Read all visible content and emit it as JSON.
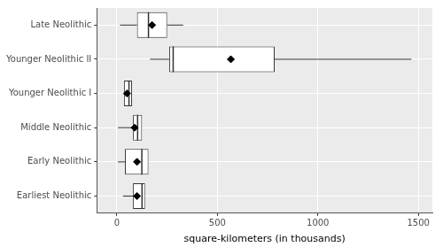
{
  "chart_data": {
    "type": "boxplot",
    "orientation": "horizontal",
    "categories": [
      "Late Neolithic",
      "Younger Neolithic II",
      "Younger Neolithic I",
      "Middle Neolithic",
      "Early Neolithic",
      "Earliest Neolithic"
    ],
    "min": [
      15,
      165,
      35,
      5,
      5,
      30
    ],
    "q1": [
      100,
      260,
      35,
      80,
      40,
      80
    ],
    "median": [
      157,
      280,
      60,
      103,
      124,
      125
    ],
    "q3": [
      250,
      785,
      75,
      125,
      157,
      140
    ],
    "max": [
      330,
      1465,
      75,
      125,
      157,
      140
    ],
    "mean": [
      175,
      567,
      50,
      88,
      100,
      100
    ],
    "x_label": "square-kilometers (in thousands)",
    "xlim": [
      -100,
      1570
    ],
    "xticks": [
      0,
      500,
      1000,
      1500
    ],
    "grid": true,
    "marker": "diamond",
    "color": "#ffffff"
  }
}
